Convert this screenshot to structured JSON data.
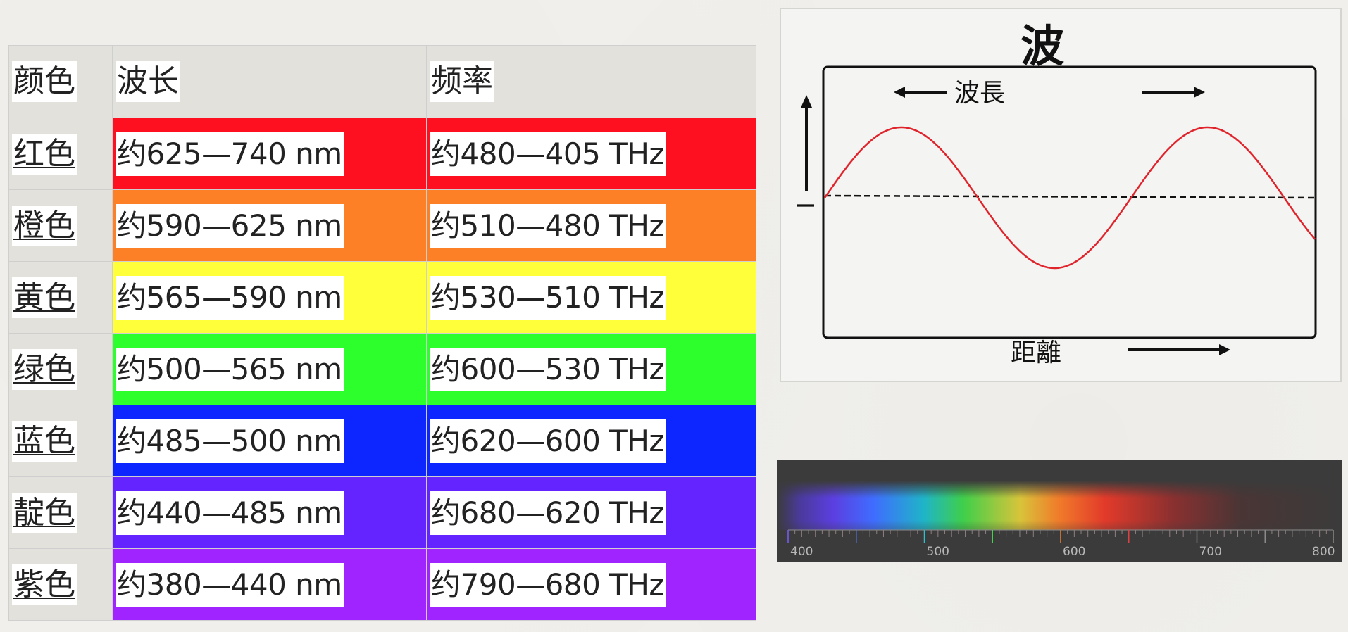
{
  "table": {
    "headers": {
      "name": "颜色",
      "wavelength": "波长",
      "frequency": "频率"
    },
    "rows": [
      {
        "name": "红色",
        "wavelength": "约625—740 nm",
        "frequency": "约480—405 THz",
        "color": "#ff1020"
      },
      {
        "name": "橙色",
        "wavelength": "约590—625 nm",
        "frequency": "约510—480 THz",
        "color": "#fe8026"
      },
      {
        "name": "黄色",
        "wavelength": "约565—590 nm",
        "frequency": "约530—510 THz",
        "color": "#ffff3a"
      },
      {
        "name": "绿色",
        "wavelength": "约500—565 nm",
        "frequency": "约600—530 THz",
        "color": "#2dff2d"
      },
      {
        "name": "蓝色",
        "wavelength": "约485—500 nm",
        "frequency": "约620—600 THz",
        "color": "#0d25ff"
      },
      {
        "name": "靛色",
        "wavelength": "约440—485 nm",
        "frequency": "约680—620 THz",
        "color": "#6424ff"
      },
      {
        "name": "紫色",
        "wavelength": "约380—440 nm",
        "frequency": "约790—680 THz",
        "color": "#a024ff"
      }
    ]
  },
  "wave_diagram": {
    "title": "波",
    "wavelength_label": "波長",
    "distance_label": "距離",
    "amplitude_label": "I",
    "wave_color": "#e0242c"
  },
  "spectrum": {
    "tick_labels": [
      "400",
      "500",
      "600",
      "700",
      "800"
    ],
    "colors": {
      "violet": "#5b3fe0",
      "blue": "#3f6cff",
      "cyan": "#1fb4c8",
      "green": "#3fcf4a",
      "yellow": "#d8c43a",
      "orange": "#f07a2a",
      "red": "#e23a2a",
      "dark_red": "#6a2a2a"
    }
  }
}
